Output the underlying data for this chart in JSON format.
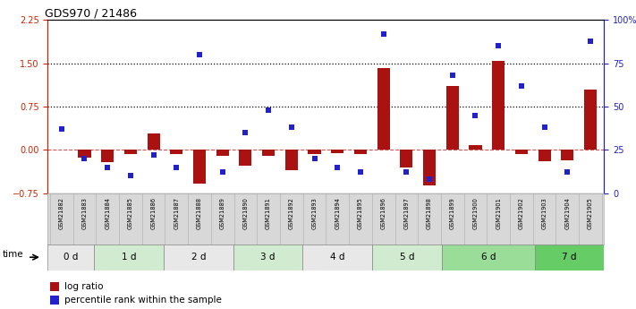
{
  "title": "GDS970 / 21486",
  "samples": [
    "GSM21882",
    "GSM21883",
    "GSM21884",
    "GSM21885",
    "GSM21886",
    "GSM21887",
    "GSM21888",
    "GSM21889",
    "GSM21890",
    "GSM21891",
    "GSM21892",
    "GSM21893",
    "GSM21894",
    "GSM21895",
    "GSM21896",
    "GSM21897",
    "GSM21898",
    "GSM21899",
    "GSM21900",
    "GSM21901",
    "GSM21902",
    "GSM21903",
    "GSM21904",
    "GSM21905"
  ],
  "log_ratio": [
    0.0,
    -0.13,
    -0.22,
    -0.08,
    0.28,
    -0.08,
    -0.58,
    -0.1,
    -0.28,
    -0.1,
    -0.35,
    -0.08,
    -0.05,
    -0.08,
    1.42,
    -0.3,
    -0.62,
    1.1,
    0.08,
    1.55,
    -0.08,
    -0.2,
    -0.18,
    1.05
  ],
  "percentile_rank": [
    37,
    20,
    15,
    10,
    22,
    15,
    80,
    12,
    35,
    48,
    38,
    20,
    15,
    12,
    92,
    12,
    8,
    68,
    45,
    85,
    62,
    38,
    12,
    88
  ],
  "time_groups": [
    {
      "label": "0 d",
      "start": 0,
      "end": 2
    },
    {
      "label": "1 d",
      "start": 2,
      "end": 5
    },
    {
      "label": "2 d",
      "start": 5,
      "end": 8
    },
    {
      "label": "3 d",
      "start": 8,
      "end": 11
    },
    {
      "label": "4 d",
      "start": 11,
      "end": 14
    },
    {
      "label": "5 d",
      "start": 14,
      "end": 17
    },
    {
      "label": "6 d",
      "start": 17,
      "end": 21
    },
    {
      "label": "7 d",
      "start": 21,
      "end": 24
    }
  ],
  "group_colors": [
    "#e8e8e8",
    "#d0ebd0",
    "#e8e8e8",
    "#d0ebd0",
    "#e8e8e8",
    "#d0ebd0",
    "#99dd99",
    "#66cc66"
  ],
  "ylim_left": [
    -0.75,
    2.25
  ],
  "ylim_right": [
    0,
    100
  ],
  "yticks_left": [
    -0.75,
    0,
    0.75,
    1.5,
    2.25
  ],
  "yticks_right": [
    0,
    25,
    50,
    75,
    100
  ],
  "hlines": [
    0.75,
    1.5
  ],
  "bar_color": "#AA1111",
  "dot_color": "#2222CC",
  "zero_line_color": "#CC5555",
  "bg_color": "#ffffff",
  "label_color_left": "#CC2200",
  "label_color_right": "#2222BB"
}
